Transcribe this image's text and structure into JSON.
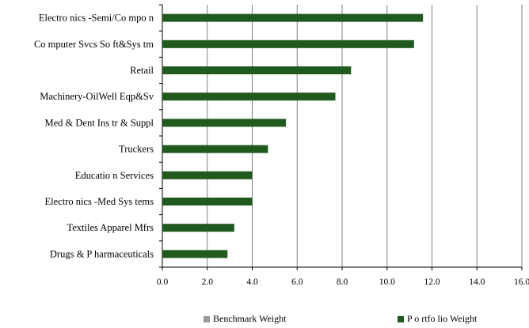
{
  "chart_data": {
    "type": "bar",
    "orientation": "horizontal",
    "categories": [
      "Electro nics -Semi/Co mpo n",
      "Co mputer Svcs So ft&Sys tm",
      "Retail",
      "Machinery-OilWell Eqp&Sv",
      "Med & Dent Ins tr & Suppl",
      "Truckers",
      "Educatio n Services",
      "Electro nics -Med Sys tems",
      "Textiles Apparel Mfrs",
      "Drugs & P harmaceuticals"
    ],
    "series": [
      {
        "name": "Benchmark Weight",
        "color": "#999999",
        "values": [
          0,
          0,
          0,
          0,
          0,
          0,
          0,
          0,
          0,
          0
        ]
      },
      {
        "name": "P o rtfo lio Weight",
        "color": "#215a1e",
        "values": [
          11.6,
          11.2,
          8.4,
          7.7,
          5.5,
          4.7,
          4.0,
          4.0,
          3.2,
          2.9
        ]
      }
    ],
    "xlim": [
      0,
      16
    ],
    "xticks": [
      "0.0",
      "2.0",
      "4.0",
      "6.0",
      "8.0",
      "10.0",
      "12.0",
      "14.0",
      "16.0"
    ],
    "grid": true,
    "legend_position": "bottom"
  }
}
